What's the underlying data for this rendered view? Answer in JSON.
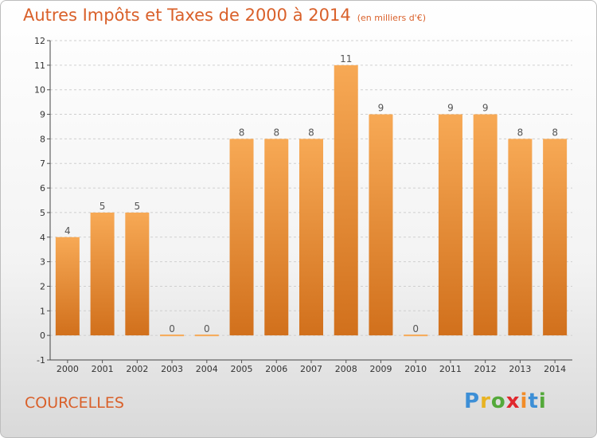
{
  "header": {
    "title": "Autres Impôts et Taxes de 2000 à 2014",
    "unit": "(en milliers d'€)"
  },
  "footer": {
    "place": "COURCELLES",
    "logo": "Proxiti"
  },
  "colors": {
    "title": "#d9602a",
    "bar_light": "#f7a955",
    "bar_dark": "#d1701c",
    "grid": "#cfcfcf"
  },
  "chart_data": {
    "type": "bar",
    "title": "Autres Impôts et Taxes de 2000 à 2014",
    "subtitle": "(en milliers d'€)",
    "xlabel": "",
    "ylabel": "",
    "categories": [
      "2000",
      "2001",
      "2002",
      "2003",
      "2004",
      "2005",
      "2006",
      "2007",
      "2008",
      "2009",
      "2010",
      "2011",
      "2012",
      "2013",
      "2014"
    ],
    "values": [
      4,
      5,
      5,
      0,
      0,
      8,
      8,
      8,
      11,
      9,
      0,
      9,
      9,
      8,
      8
    ],
    "ylim": [
      -1,
      12
    ],
    "yticks": [
      -1,
      0,
      1,
      2,
      3,
      4,
      5,
      6,
      7,
      8,
      9,
      10,
      11,
      12
    ],
    "grid": true,
    "legend": "none"
  }
}
